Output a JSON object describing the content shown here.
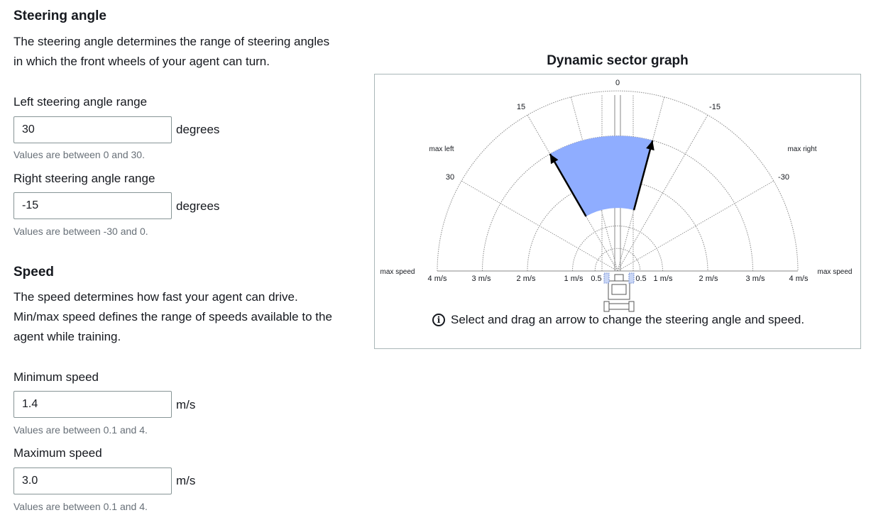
{
  "steering": {
    "heading": "Steering angle",
    "description_line1": "The steering angle determines the range of steering angles",
    "description_line2": "in which the front wheels of your agent can turn.",
    "left_label": "Left steering angle range",
    "left_value": "30",
    "left_unit": "degrees",
    "left_hint": "Values are between 0 and 30.",
    "right_label": "Right steering angle range",
    "right_value": "-15",
    "right_unit": "degrees",
    "right_hint": "Values are between -30 and 0."
  },
  "speed": {
    "heading": "Speed",
    "description_line1": "The speed determines how fast your agent can drive.",
    "description_line2": "Min/max speed defines the range of speeds available to the",
    "description_line3": "agent while training.",
    "min_label": "Minimum speed",
    "min_value": "1.4",
    "min_unit": "m/s",
    "min_hint": "Values are between 0.1 and 4.",
    "max_label": "Maximum speed",
    "max_value": "3.0",
    "max_unit": "m/s",
    "max_hint": "Values are between 0.1 and 4."
  },
  "graph": {
    "title": "Dynamic sector graph",
    "info_text": "Select and drag an arrow to change the steering angle and speed.",
    "label_zero": "0",
    "label_15": "15",
    "label_neg15": "-15",
    "label_30": "30",
    "label_neg30": "-30",
    "max_left": "max left",
    "max_right": "max right",
    "max_speed_left": "max speed",
    "max_speed_right": "max speed",
    "ticks_left": [
      "4 m/s",
      "3 m/s",
      "2 m/s",
      "1 m/s",
      "0.5"
    ],
    "ticks_right": [
      "0.5",
      "1 m/s",
      "2 m/s",
      "3 m/s",
      "4 m/s"
    ],
    "sector_color": "#8fadff",
    "arrow_color": "#000000"
  },
  "chart_data": {
    "type": "sector",
    "steering_left_deg": 30,
    "steering_right_deg": -15,
    "speed_min": 1.4,
    "speed_max": 3.0,
    "speed_scale_max": 4,
    "angle_ticks": [
      0,
      15,
      -15,
      30,
      -30
    ],
    "speed_ticks": [
      0.5,
      1,
      2,
      3,
      4
    ]
  }
}
